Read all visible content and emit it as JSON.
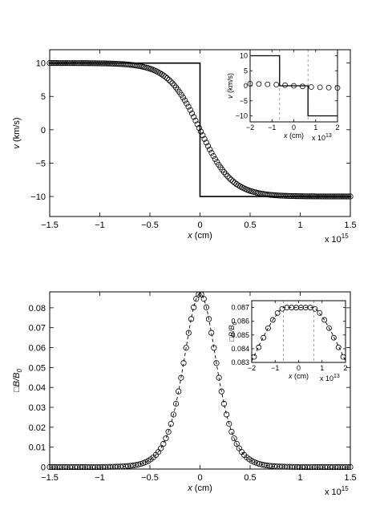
{
  "chart_data": [
    {
      "type": "line",
      "panel": "top-main",
      "xlabel_var": "x",
      "xlabel_unit": " (cm)",
      "ylabel_var": "v",
      "ylabel_unit": " (km/s)",
      "x_multiplier_base": "x 10",
      "x_multiplier_exp": "15",
      "xlim": [
        -1.5,
        1.5
      ],
      "ylim": [
        -13,
        12
      ],
      "xticks": [
        -1.5,
        -1,
        -0.5,
        0,
        0.5,
        1,
        1.5
      ],
      "xtick_labels": [
        "−1.5",
        "−1",
        "−0.5",
        "0",
        "0.5",
        "1",
        "1.5"
      ],
      "yticks": [
        -10,
        -5,
        0,
        5,
        10
      ],
      "ytick_labels": [
        "−10",
        "−5",
        "0",
        "5",
        "10"
      ],
      "series": [
        {
          "kind": "initial-step",
          "x": [
            -1.5,
            0,
            0,
            1.5
          ],
          "y": [
            10,
            10,
            -10,
            -10
          ]
        },
        {
          "kind": "markers",
          "function": "tanh",
          "amplitude": 10,
          "width": 0.32,
          "x_range": [
            -1.5,
            1.5
          ],
          "n_points": 170
        }
      ]
    },
    {
      "type": "line",
      "panel": "top-inset",
      "xlabel_var": "x",
      "xlabel_unit": " (cm)",
      "ylabel_var": "v",
      "ylabel_unit": " (km/s)",
      "x_multiplier_base": "x 10",
      "x_multiplier_exp": "13",
      "xlim": [
        -2,
        2
      ],
      "ylim": [
        -12,
        12
      ],
      "xticks": [
        -2,
        -1,
        0,
        1,
        2
      ],
      "xtick_labels": [
        "−2",
        "−1",
        "0",
        "1",
        "2"
      ],
      "yticks": [
        -10,
        -5,
        0,
        5,
        10
      ],
      "ytick_labels": [
        "−10",
        "−5",
        "0",
        "5",
        "10"
      ],
      "dashed_x": [
        -0.65,
        0.65
      ],
      "series": [
        {
          "kind": "two-step",
          "x": [
            -2,
            -0.65,
            -0.65,
            0.65,
            0.65,
            2
          ],
          "y": [
            10,
            10,
            0,
            0,
            -10,
            -10
          ]
        },
        {
          "kind": "markers",
          "x": [
            -2,
            -1.6,
            -1.2,
            -0.8,
            -0.4,
            0,
            0.4,
            0.8,
            1.2,
            1.6,
            2
          ],
          "y": [
            0.7,
            0.6,
            0.5,
            0.4,
            0.2,
            0,
            -0.2,
            -0.4,
            -0.5,
            -0.6,
            -0.7
          ]
        }
      ]
    },
    {
      "type": "line",
      "panel": "bottom-main",
      "xlabel_var": "x",
      "xlabel_unit": " (cm)",
      "ylabel_glyph": "□",
      "ylabel_var": "B/B",
      "ylabel_sub": "0",
      "x_multiplier_base": "x 10",
      "x_multiplier_exp": "15",
      "xlim": [
        -1.5,
        1.5
      ],
      "ylim": [
        -0.001,
        0.088
      ],
      "xticks": [
        -1.5,
        -1,
        -0.5,
        0,
        0.5,
        1,
        1.5
      ],
      "xtick_labels": [
        "−1.5",
        "−1",
        "−0.5",
        "0",
        "0.5",
        "1",
        "1.5"
      ],
      "yticks": [
        0,
        0.01,
        0.02,
        0.03,
        0.04,
        0.05,
        0.06,
        0.07,
        0.08
      ],
      "ytick_labels": [
        "0",
        "0.01",
        "0.02",
        "0.03",
        "0.04",
        "0.05",
        "0.06",
        "0.07",
        "0.08"
      ],
      "series": [
        {
          "kind": "dashed-curve",
          "function": "sech2",
          "peak": 0.087,
          "width": 0.22,
          "x_range": [
            -1.5,
            1.5
          ]
        },
        {
          "kind": "markers",
          "function": "sech2",
          "peak": 0.087,
          "width": 0.22,
          "x_range": [
            -1.5,
            1.5
          ],
          "n_points": 120
        }
      ]
    },
    {
      "type": "line",
      "panel": "bottom-inset",
      "xlabel_var": "x",
      "xlabel_unit": " (cm)",
      "ylabel_glyph": "□",
      "ylabel_var": "B/B",
      "ylabel_sub": "0",
      "x_multiplier_base": "x 10",
      "x_multiplier_exp": "13",
      "xlim": [
        -2,
        2
      ],
      "ylim": [
        0.083,
        0.0875
      ],
      "xticks": [
        -2,
        -1,
        0,
        1,
        2
      ],
      "xtick_labels": [
        "−2",
        "−1",
        "0",
        "1",
        "2"
      ],
      "yticks": [
        0.083,
        0.084,
        0.085,
        0.086,
        0.087
      ],
      "ytick_labels": [
        "0.083",
        "0.084",
        "0.085",
        "0.086",
        "0.087"
      ],
      "dashed_x": [
        -0.65,
        0.65
      ],
      "series": [
        {
          "kind": "dashed-curve",
          "x": [
            -2,
            -1.7,
            -1.4,
            -1.1,
            -0.8,
            -0.65,
            0.65,
            0.8,
            1.1,
            1.4,
            1.7,
            2
          ],
          "y": [
            0.0831,
            0.0842,
            0.0852,
            0.0861,
            0.0868,
            0.087,
            0.087,
            0.0868,
            0.0861,
            0.0852,
            0.0842,
            0.0831
          ]
        },
        {
          "kind": "markers",
          "x": [
            -1.9,
            -1.7,
            -1.5,
            -1.3,
            -1.1,
            -0.9,
            -0.7,
            -0.5,
            -0.3,
            -0.1,
            0.1,
            0.3,
            0.5,
            0.7,
            0.9,
            1.1,
            1.3,
            1.5,
            1.7,
            1.9
          ],
          "y": [
            0.0834,
            0.0841,
            0.0848,
            0.0855,
            0.0861,
            0.0866,
            0.0869,
            0.087,
            0.087,
            0.087,
            0.087,
            0.087,
            0.087,
            0.0869,
            0.0866,
            0.0861,
            0.0855,
            0.0848,
            0.0841,
            0.0834
          ]
        }
      ]
    }
  ]
}
